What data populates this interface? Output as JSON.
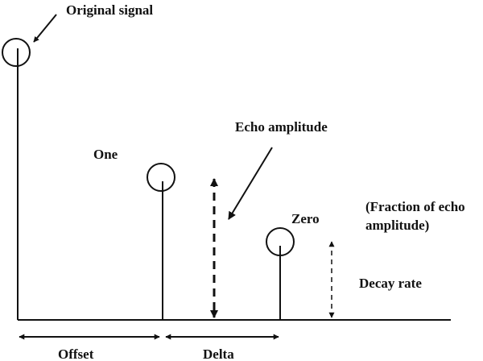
{
  "labels": {
    "original_signal": "Original signal",
    "one": "One",
    "zero": "Zero",
    "echo_amplitude": "Echo amplitude",
    "fraction_line1": "(Fraction of echo",
    "fraction_line2": "amplitude)",
    "decay_rate": "Decay rate",
    "offset": "Offset",
    "delta": "Delta"
  },
  "colors": {
    "ink": "#111111",
    "background": "#ffffff"
  }
}
